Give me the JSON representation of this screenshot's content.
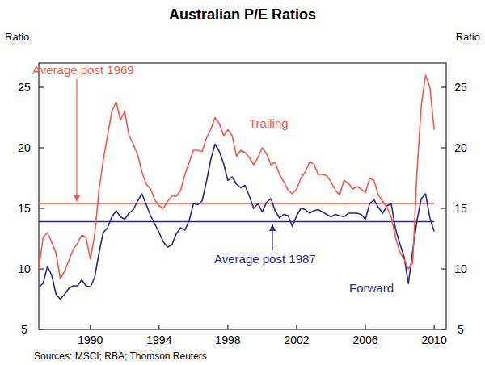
{
  "chart_data": {
    "type": "line",
    "title": "Australian P/E Ratios",
    "y_label": "Ratio",
    "source": "Sources: MSCI; RBA; Thomson Reuters",
    "x": [
      1987,
      1987.25,
      1987.5,
      1987.75,
      1988,
      1988.25,
      1988.5,
      1988.75,
      1989,
      1989.25,
      1989.5,
      1989.75,
      1990,
      1990.25,
      1990.5,
      1990.75,
      1991,
      1991.25,
      1991.5,
      1991.75,
      1992,
      1992.25,
      1992.5,
      1992.75,
      1993,
      1993.25,
      1993.5,
      1993.75,
      1994,
      1994.25,
      1994.5,
      1994.75,
      1995,
      1995.25,
      1995.5,
      1995.75,
      1996,
      1996.25,
      1996.5,
      1996.75,
      1997,
      1997.25,
      1997.5,
      1997.75,
      1998,
      1998.25,
      1998.5,
      1998.75,
      1999,
      1999.25,
      1999.5,
      1999.75,
      2000,
      2000.25,
      2000.5,
      2000.75,
      2001,
      2001.25,
      2001.5,
      2001.75,
      2002,
      2002.25,
      2002.5,
      2002.75,
      2003,
      2003.25,
      2003.5,
      2003.75,
      2004,
      2004.25,
      2004.5,
      2004.75,
      2005,
      2005.25,
      2005.5,
      2005.75,
      2006,
      2006.25,
      2006.5,
      2006.75,
      2007,
      2007.25,
      2007.5,
      2007.75,
      2008,
      2008.25,
      2008.5,
      2008.75,
      2009,
      2009.25,
      2009.5,
      2009.75,
      2010
    ],
    "series": [
      {
        "name": "Trailing",
        "color": "#f15a4a",
        "values": [
          10.0,
          12.6,
          13.0,
          12.2,
          11.3,
          9.2,
          9.8,
          10.7,
          11.6,
          12.1,
          12.8,
          12.6,
          10.8,
          12.8,
          16.5,
          19.0,
          21.0,
          23.0,
          23.8,
          22.3,
          23.0,
          21.0,
          20.3,
          19.4,
          18.0,
          17.0,
          16.6,
          15.7,
          15.2,
          15.0,
          15.6,
          16.0,
          16.0,
          16.5,
          17.8,
          18.8,
          19.8,
          19.8,
          19.7,
          20.8,
          21.5,
          22.5,
          22.0,
          21.0,
          21.5,
          21.0,
          19.3,
          19.8,
          19.6,
          19.2,
          18.6,
          19.2,
          20.0,
          19.5,
          18.6,
          18.8,
          17.8,
          17.2,
          16.5,
          16.2,
          16.6,
          17.5,
          18.0,
          18.8,
          18.7,
          17.8,
          17.8,
          17.7,
          17.2,
          16.5,
          16.1,
          17.3,
          17.1,
          16.6,
          16.8,
          16.6,
          16.3,
          17.5,
          17.3,
          16.1,
          15.6,
          15.1,
          14.3,
          12.6,
          11.4,
          10.8,
          10.0,
          10.5,
          18.0,
          23.5,
          26.0,
          25.0,
          21.5
        ]
      },
      {
        "name": "Forward",
        "color": "#2a2a80",
        "values": [
          8.5,
          8.8,
          10.2,
          9.5,
          7.9,
          7.5,
          7.9,
          8.4,
          8.6,
          8.6,
          9.1,
          8.6,
          8.5,
          9.3,
          11.3,
          13.0,
          13.4,
          14.3,
          14.8,
          14.3,
          14.1,
          14.6,
          14.9,
          15.6,
          16.2,
          15.3,
          14.4,
          13.7,
          13.0,
          12.2,
          11.8,
          12.0,
          12.9,
          13.4,
          13.2,
          14.0,
          15.4,
          15.3,
          15.6,
          17.2,
          19.0,
          20.3,
          19.7,
          18.7,
          17.3,
          17.6,
          17.0,
          16.7,
          16.9,
          16.0,
          15.0,
          15.4,
          14.7,
          15.5,
          15.8,
          14.8,
          14.2,
          14.5,
          14.4,
          13.5,
          14.4,
          15.0,
          14.9,
          14.6,
          14.8,
          14.9,
          14.7,
          14.5,
          14.3,
          14.5,
          14.4,
          14.3,
          14.6,
          14.6,
          14.6,
          14.5,
          14.1,
          15.4,
          15.7,
          15.1,
          14.6,
          15.2,
          15.4,
          13.3,
          12.1,
          11.0,
          8.8,
          11.5,
          14.0,
          15.8,
          16.2,
          14.2,
          13.1
        ]
      },
      {
        "name": "Average post 1969",
        "color": "#f15a4a",
        "x": [
          1987,
          2010
        ],
        "values": [
          15.4,
          15.4
        ]
      },
      {
        "name": "Average post 1987",
        "color": "#2a2a80",
        "x": [
          1987,
          2010
        ],
        "values": [
          13.9,
          13.9
        ]
      }
    ],
    "xlim": [
      1987,
      2010.7
    ],
    "xticks": [
      1990,
      1994,
      1998,
      2002,
      2006,
      2010
    ],
    "ylim": [
      5,
      27
    ],
    "yticks": [
      5,
      10,
      15,
      20,
      25
    ],
    "grid": false
  }
}
